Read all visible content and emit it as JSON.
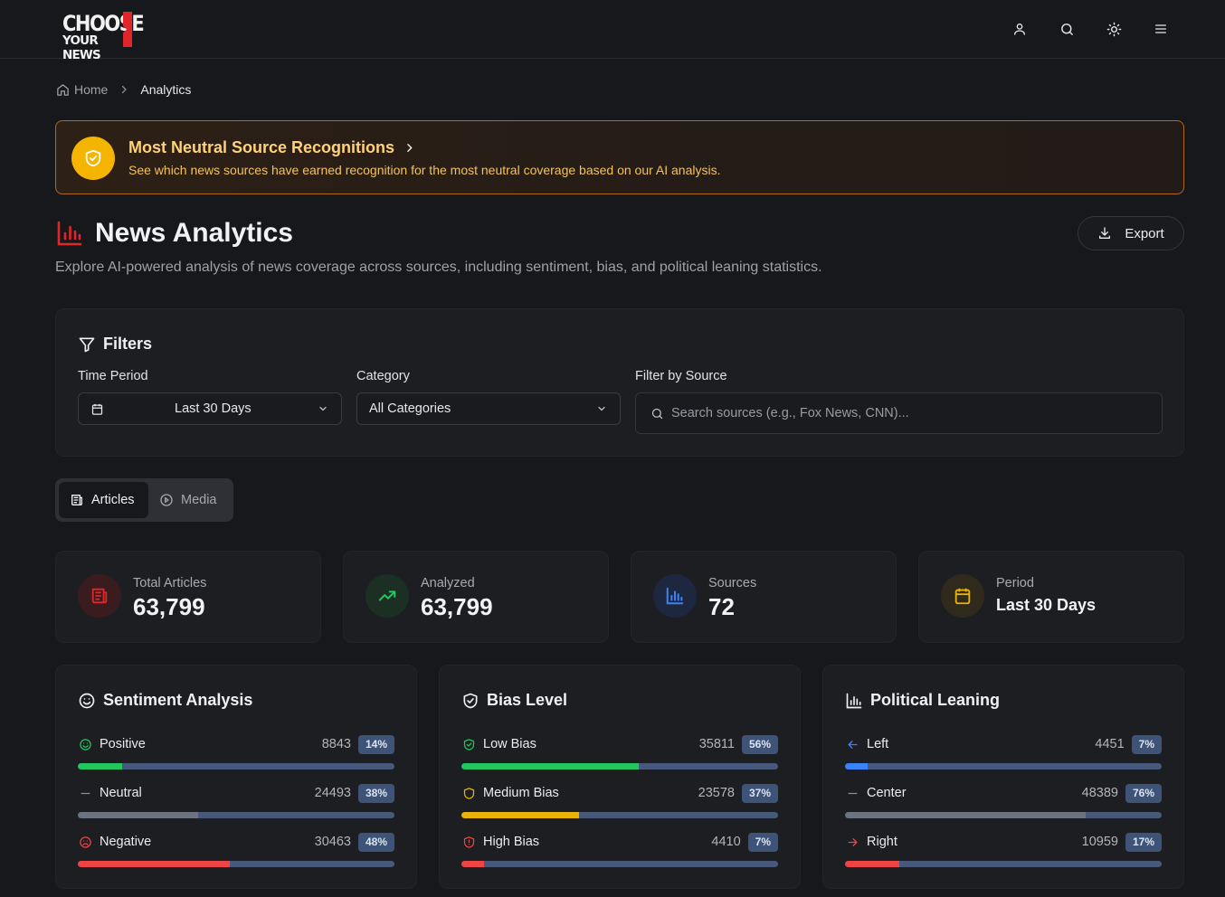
{
  "header": {
    "logo_line1": "CHOOSE",
    "logo_line2": "YOUR NEWS",
    "icons": [
      "user-icon",
      "search-icon",
      "sun-icon",
      "menu-icon"
    ]
  },
  "breadcrumb": {
    "home": "Home",
    "current": "Analytics"
  },
  "banner": {
    "title": "Most Neutral Source Recognitions",
    "description": "See which news sources have earned recognition for the most neutral coverage based on our AI analysis."
  },
  "page": {
    "title": "News Analytics",
    "subtitle": "Explore AI-powered analysis of news coverage across sources, including sentiment, bias, and political leaning statistics.",
    "export_label": "Export"
  },
  "filters": {
    "title": "Filters",
    "time_period_label": "Time Period",
    "time_period_value": "Last 30 Days",
    "category_label": "Category",
    "category_value": "All Categories",
    "source_label": "Filter by Source",
    "source_placeholder": "Search sources (e.g., Fox News, CNN)..."
  },
  "tabs": {
    "articles": "Articles",
    "media": "Media",
    "active": "articles"
  },
  "stats": [
    {
      "label": "Total Articles",
      "value": "63,799"
    },
    {
      "label": "Analyzed",
      "value": "63,799"
    },
    {
      "label": "Sources",
      "value": "72"
    },
    {
      "label": "Period",
      "value": "Last 30 Days"
    }
  ],
  "colors": {
    "accent_red": "#e0262a",
    "banner_border": "#b06a17",
    "banner_badge": "#f4b400",
    "green": "#22c55e",
    "yellow": "#eab308",
    "red": "#ef4444",
    "blue": "#3b82f6",
    "gray": "#6b7280",
    "track": "#48587a"
  },
  "panels": {
    "sentiment": {
      "title": "Sentiment Analysis",
      "rows": [
        {
          "name": "Positive",
          "count": "8843",
          "pct": "14%",
          "fraction": 0.14
        },
        {
          "name": "Neutral",
          "count": "24493",
          "pct": "38%",
          "fraction": 0.38
        },
        {
          "name": "Negative",
          "count": "30463",
          "pct": "48%",
          "fraction": 0.48
        }
      ]
    },
    "bias": {
      "title": "Bias Level",
      "rows": [
        {
          "name": "Low Bias",
          "count": "35811",
          "pct": "56%",
          "fraction": 0.56
        },
        {
          "name": "Medium Bias",
          "count": "23578",
          "pct": "37%",
          "fraction": 0.37
        },
        {
          "name": "High Bias",
          "count": "4410",
          "pct": "7%",
          "fraction": 0.07
        }
      ]
    },
    "political": {
      "title": "Political Leaning",
      "rows": [
        {
          "name": "Left",
          "count": "4451",
          "pct": "7%",
          "fraction": 0.07
        },
        {
          "name": "Center",
          "count": "48389",
          "pct": "76%",
          "fraction": 0.76
        },
        {
          "name": "Right",
          "count": "10959",
          "pct": "17%",
          "fraction": 0.17
        }
      ]
    }
  }
}
